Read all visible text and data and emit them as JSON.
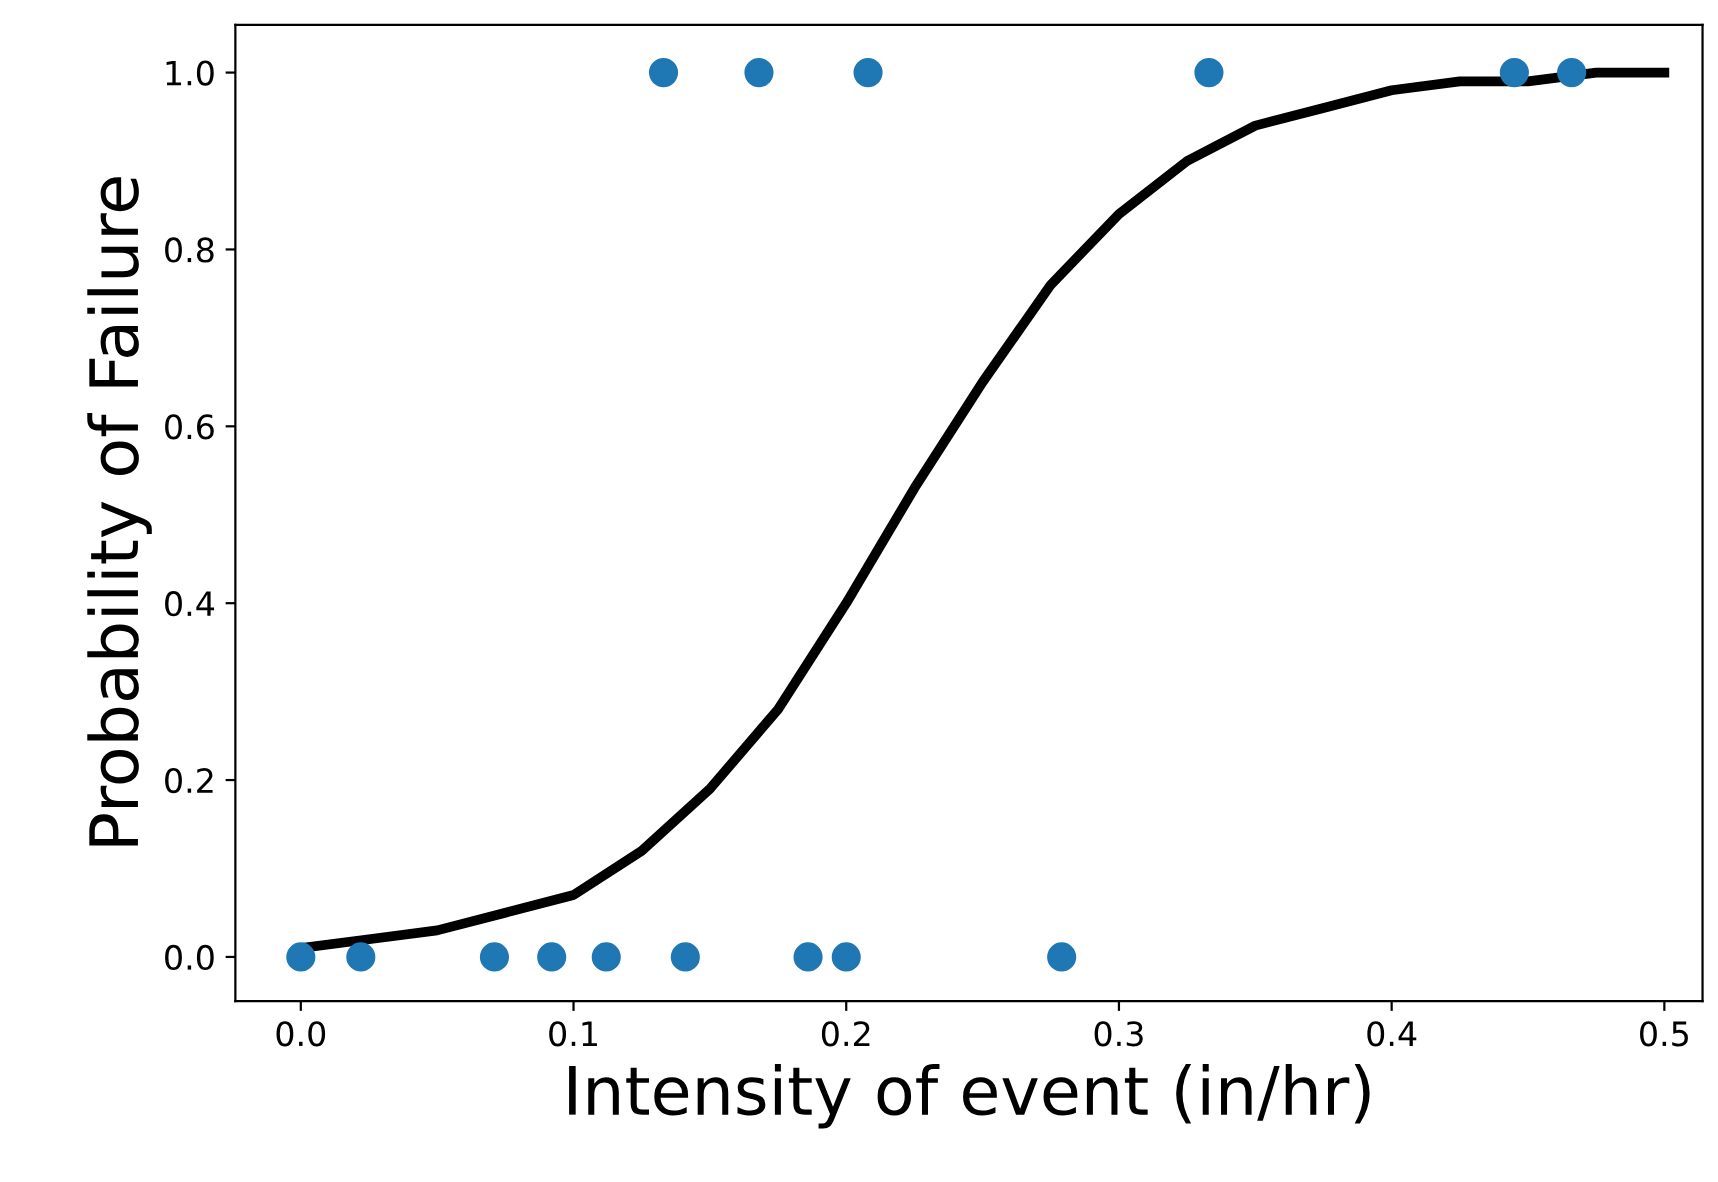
{
  "chart_data": {
    "type": "scatter",
    "xlabel": "Intensity of event (in/hr)",
    "ylabel": "Probability of Failure",
    "xlim": [
      -0.024,
      0.514
    ],
    "ylim": [
      -0.05,
      1.054
    ],
    "xticks": [
      {
        "value": 0,
        "label": "0.0"
      },
      0.1,
      0.2,
      0.3,
      0.4,
      0.5
    ],
    "yticks": [
      {
        "value": 0,
        "label": "0.0"
      },
      0.2,
      0.4,
      0.6,
      0.8,
      {
        "value": 1,
        "label": "1.0"
      }
    ],
    "grid": false,
    "legend": false,
    "marker": "circle",
    "series": [
      {
        "color": "#1f77b4",
        "x": [
          0.133,
          0.168,
          0.208,
          0.333,
          0.445,
          0.466,
          0.0,
          0.022,
          0.071,
          0.092,
          0.112,
          0.141,
          0.186,
          0.2,
          0.279
        ],
        "values": [
          1,
          1,
          1,
          1,
          1,
          1,
          0,
          0,
          0,
          0,
          0,
          0,
          0,
          0,
          0
        ]
      },
      {
        "type": "line",
        "color": "#000000",
        "marker": "none",
        "line_style": "solid",
        "x": [
          0,
          0.025,
          0.05,
          0.075,
          0.1,
          0.125,
          0.15,
          0.175,
          0.2,
          0.225,
          0.25,
          0.275,
          0.3,
          0.325,
          0.35,
          0.375,
          0.4,
          0.425,
          0.45,
          0.475,
          0.5
        ],
        "values": [
          0.01,
          0.02,
          0.03,
          0.05,
          0.07,
          0.12,
          0.19,
          0.28,
          0.4,
          0.53,
          0.65,
          0.76,
          0.84,
          0.9,
          0.94,
          0.96,
          0.98,
          0.99,
          0.99,
          1.0,
          1.0
        ]
      }
    ]
  }
}
